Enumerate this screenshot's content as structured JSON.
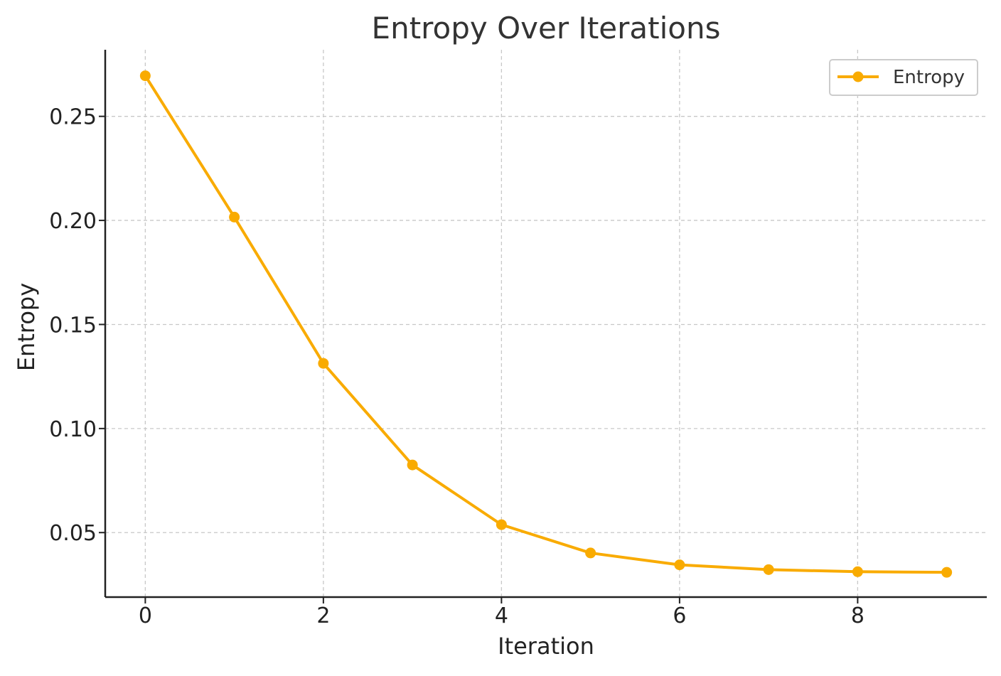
{
  "chart_data": {
    "type": "line",
    "title": "Entropy Over Iterations",
    "xlabel": "Iteration",
    "ylabel": "Entropy",
    "xlim": [
      -0.45,
      9.45
    ],
    "ylim": [
      0.019,
      0.282
    ],
    "x_ticks": [
      0,
      2,
      4,
      6,
      8
    ],
    "x_tick_labels": [
      "0",
      "2",
      "4",
      "6",
      "8"
    ],
    "y_ticks": [
      0.05,
      0.1,
      0.15,
      0.2,
      0.25
    ],
    "y_tick_labels": [
      "0.05",
      "0.10",
      "0.15",
      "0.20",
      "0.25"
    ],
    "grid": true,
    "legend": "top-right",
    "series": [
      {
        "name": "Entropy",
        "color": "#f9ab00",
        "marker": "circle",
        "x": [
          0,
          1,
          2,
          3,
          4,
          5,
          6,
          7,
          8,
          9
        ],
        "values": [
          0.2695,
          0.2016,
          0.1313,
          0.0825,
          0.0538,
          0.0402,
          0.0345,
          0.0322,
          0.0312,
          0.0309
        ]
      }
    ]
  },
  "colors": {
    "text": "#333333",
    "axis": "#222222",
    "grid": "#c8c8c8",
    "legend_border": "#cccccc"
  }
}
